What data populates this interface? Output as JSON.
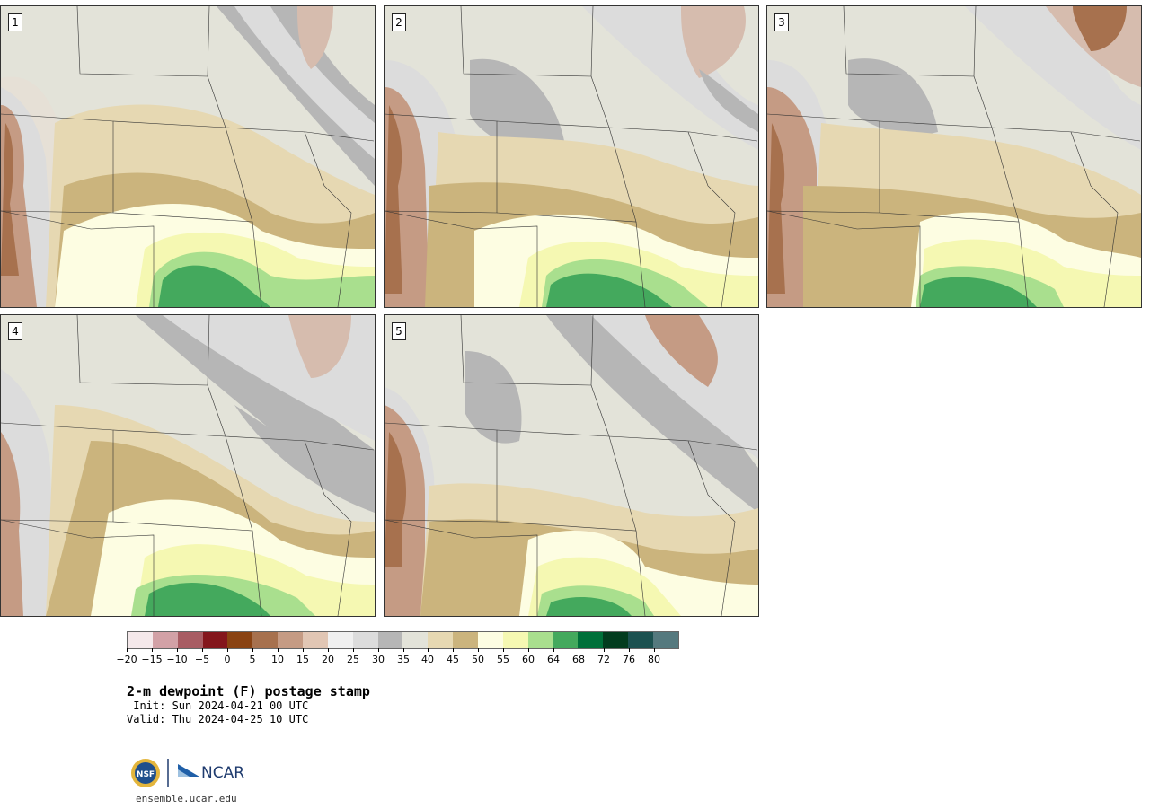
{
  "panels": [
    {
      "number": "1"
    },
    {
      "number": "2"
    },
    {
      "number": "3"
    },
    {
      "number": "4"
    },
    {
      "number": "5"
    }
  ],
  "colorbar": {
    "colors": [
      "#f4e8ea",
      "#d2a1a6",
      "#a85c63",
      "#84161c",
      "#8a4312",
      "#a7714e",
      "#c59b84",
      "#e1c6b4",
      "#f0f0f0",
      "#dcdcdc",
      "#b6b6b6",
      "#e3e3d9",
      "#e6d8b2",
      "#cbb47d",
      "#fdfde2",
      "#f5f8b2",
      "#a9df8e",
      "#44a95d",
      "#00703a",
      "#033c1f",
      "#1c5150",
      "#55797e"
    ],
    "ticks": [
      "−20",
      "−15",
      "−10",
      "−5",
      "0",
      "5",
      "10",
      "15",
      "20",
      "25",
      "30",
      "35",
      "40",
      "45",
      "50",
      "55",
      "60",
      "64",
      "68",
      "72",
      "76",
      "80"
    ]
  },
  "title": "2-m dewpoint (F) postage stamp",
  "init_line": " Init: Sun 2024-04-21 00 UTC",
  "valid_line": "Valid: Thu 2024-04-25 10 UTC",
  "logo": {
    "nsf": "NSF",
    "ncar": "NCAR"
  },
  "website": "ensemble.ucar.edu"
}
